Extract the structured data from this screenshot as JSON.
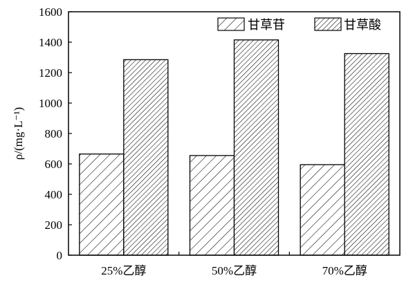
{
  "chart_data": {
    "type": "bar",
    "title": "",
    "xlabel": "",
    "ylabel": "ρ/(mg·L⁻¹)",
    "ylim": [
      0,
      1600
    ],
    "yticks": [
      0,
      200,
      400,
      600,
      800,
      1000,
      1200,
      1400,
      1600
    ],
    "grid": false,
    "legend_position": "top-right",
    "categories": [
      "25%乙醇",
      "50%乙醇",
      "70%乙醇"
    ],
    "series": [
      {
        "name": "甘草苷",
        "values": [
          665,
          655,
          595
        ],
        "pattern": "diagonal-sparse"
      },
      {
        "name": "甘草酸",
        "values": [
          1285,
          1415,
          1325
        ],
        "pattern": "diagonal-dense"
      }
    ]
  }
}
